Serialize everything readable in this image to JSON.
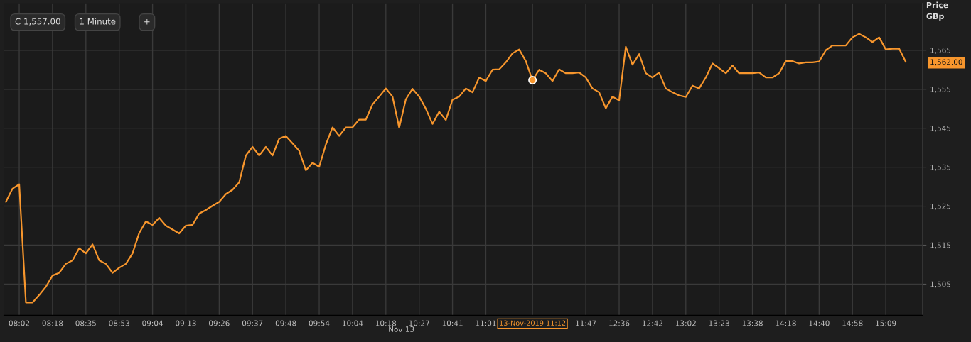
{
  "chart_data": {
    "type": "line",
    "categories": [
      null,
      null,
      "08:02",
      null,
      null,
      null,
      null,
      "08:18",
      null,
      null,
      null,
      null,
      "08:35",
      null,
      null,
      null,
      null,
      "08:53",
      null,
      null,
      null,
      null,
      "09:04",
      null,
      null,
      null,
      null,
      "09:13",
      null,
      null,
      null,
      null,
      "09:26",
      null,
      null,
      null,
      null,
      "09:37",
      null,
      null,
      null,
      null,
      "09:48",
      null,
      null,
      null,
      null,
      "09:54",
      null,
      null,
      null,
      null,
      "10:04",
      null,
      null,
      null,
      null,
      "10:18",
      null,
      null,
      null,
      null,
      "10:27",
      null,
      null,
      null,
      null,
      "10:41",
      null,
      null,
      null,
      null,
      "11:01",
      null,
      null,
      null,
      null,
      null,
      null,
      "13-Nov-2019 11:12",
      null,
      null,
      null,
      null,
      null,
      null,
      null,
      "11:47",
      null,
      null,
      null,
      null,
      "12:36",
      null,
      null,
      null,
      null,
      "12:42",
      null,
      null,
      null,
      null,
      "13:02",
      null,
      null,
      null,
      null,
      "13:23",
      null,
      null,
      null,
      null,
      "13:38",
      null,
      null,
      null,
      null,
      "14:18",
      null,
      null,
      null,
      null,
      "14:40",
      null,
      null,
      null,
      null,
      "14:58",
      null,
      null,
      null,
      null,
      "15:09",
      null,
      null,
      null
    ],
    "series": [
      {
        "color": "#f7962d",
        "values": [
          1526.1,
          1529.5,
          1530.6,
          1500.3,
          1500.3,
          1502.2,
          1504.3,
          1507.2,
          1507.9,
          1510.2,
          1511.1,
          1514.2,
          1512.9,
          1515.2,
          1511.1,
          1510.2,
          1507.9,
          1509.2,
          1510.2,
          1512.9,
          1518.1,
          1521.1,
          1520.2,
          1522.0,
          1520.0,
          1519.0,
          1518.0,
          1520.0,
          1520.2,
          1523.1,
          1524.0,
          1525.1,
          1526.1,
          1528.1,
          1529.2,
          1531.1,
          1538.0,
          1540.2,
          1538.0,
          1540.2,
          1538.0,
          1542.3,
          1543.0,
          1541.1,
          1539.2,
          1534.2,
          1536.1,
          1535.1,
          1540.8,
          1545.2,
          1543.0,
          1545.2,
          1545.2,
          1547.2,
          1547.2,
          1551.1,
          1553.1,
          1555.2,
          1553.1,
          1545.1,
          1552.4,
          1555.1,
          1553.1,
          1550.0,
          1546.1,
          1549.2,
          1547.1,
          1552.3,
          1553.1,
          1555.2,
          1554.2,
          1558.0,
          1557.1,
          1560.0,
          1560.1,
          1561.9,
          1564.2,
          1565.2,
          1562.2,
          1557.3,
          1560.0,
          1559.1,
          1557.1,
          1560.1,
          1559.1,
          1559.1,
          1559.3,
          1558.0,
          1555.2,
          1554.2,
          1550.1,
          1553.1,
          1552.1,
          1565.9,
          1561.3,
          1564.0,
          1559.1,
          1558.0,
          1559.3,
          1555.2,
          1554.2,
          1553.4,
          1553.0,
          1555.9,
          1555.2,
          1558.0,
          1561.6,
          1560.4,
          1559.1,
          1561.1,
          1559.1,
          1559.1,
          1559.1,
          1559.3,
          1558.0,
          1558.0,
          1559.1,
          1562.2,
          1562.2,
          1561.6,
          1561.9,
          1561.9,
          1562.1,
          1565.0,
          1566.2,
          1566.2,
          1566.2,
          1568.3,
          1569.2,
          1568.3,
          1567.1,
          1568.3,
          1565.2,
          1565.4,
          1565.4,
          1562.0
        ]
      },
      {
        "type": "scatter",
        "color": "#f7962d",
        "x": [
          "13-Nov-2019 11:12"
        ],
        "values": [
          1557.3
        ]
      }
    ],
    "ylabel": "Price\nGBp",
    "ylim": [
      1497,
      1577
    ],
    "yticks": [
      {
        "value": 1505,
        "label": "1,505"
      },
      {
        "value": 1515,
        "label": "1,515"
      },
      {
        "value": 1525,
        "label": "1,525"
      },
      {
        "value": 1535,
        "label": "1,535"
      },
      {
        "value": 1545,
        "label": "1,545"
      },
      {
        "value": 1555,
        "label": "1,555"
      },
      {
        "value": 1565,
        "label": "1,565"
      },
      {
        "value": 1562,
        "label": "1,562.00"
      }
    ],
    "grid": true,
    "xlabel": "Nov 13",
    "annotations": [
      "C 1,557.00",
      "1 Minute",
      "+"
    ]
  }
}
